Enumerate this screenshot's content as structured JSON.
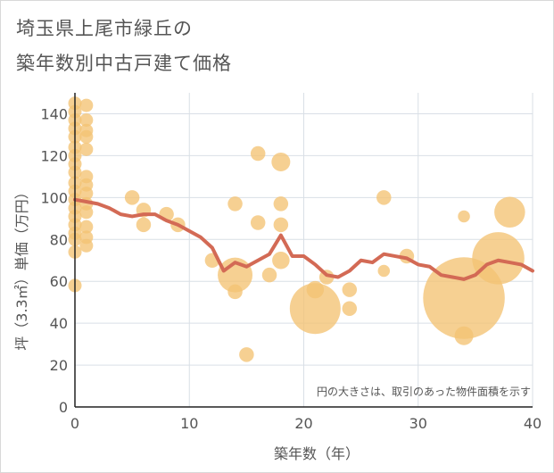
{
  "chart_data": {
    "type": "scatter",
    "title_line1": "埼玉県上尾市緑丘の",
    "title_line2": "築年数別中古戸建て価格",
    "xlabel": "築年数（年）",
    "ylabel": "坪（3.3㎡）単価（万円）",
    "note": "円の大きさは、取引のあった物件面積を示す",
    "xlim": [
      0,
      40
    ],
    "ylim": [
      0,
      150
    ],
    "xticks": [
      0,
      10,
      20,
      30,
      40
    ],
    "yticks": [
      0,
      20,
      40,
      60,
      80,
      100,
      120,
      140
    ],
    "colors": {
      "bubble": "#f3c373",
      "trend": "#d36a55",
      "grid": "#d9dfe6"
    },
    "bubbles": [
      {
        "x": 0,
        "y": 145,
        "s": 1
      },
      {
        "x": 0,
        "y": 141,
        "s": 1
      },
      {
        "x": 0,
        "y": 137,
        "s": 1
      },
      {
        "x": 0,
        "y": 133,
        "s": 1
      },
      {
        "x": 0,
        "y": 129,
        "s": 1
      },
      {
        "x": 0,
        "y": 124,
        "s": 1
      },
      {
        "x": 0,
        "y": 120,
        "s": 1
      },
      {
        "x": 0,
        "y": 116,
        "s": 1
      },
      {
        "x": 0,
        "y": 112,
        "s": 1
      },
      {
        "x": 0,
        "y": 107,
        "s": 1
      },
      {
        "x": 0,
        "y": 103,
        "s": 1
      },
      {
        "x": 0,
        "y": 99,
        "s": 1
      },
      {
        "x": 0,
        "y": 95,
        "s": 1
      },
      {
        "x": 0,
        "y": 91,
        "s": 1
      },
      {
        "x": 0,
        "y": 87,
        "s": 1
      },
      {
        "x": 0,
        "y": 83,
        "s": 1
      },
      {
        "x": 0,
        "y": 80,
        "s": 1
      },
      {
        "x": 0,
        "y": 74,
        "s": 1
      },
      {
        "x": 0,
        "y": 58,
        "s": 1
      },
      {
        "x": 1,
        "y": 144,
        "s": 1
      },
      {
        "x": 1,
        "y": 137,
        "s": 1
      },
      {
        "x": 1,
        "y": 132,
        "s": 1
      },
      {
        "x": 1,
        "y": 129,
        "s": 1
      },
      {
        "x": 1,
        "y": 123,
        "s": 1
      },
      {
        "x": 1,
        "y": 110,
        "s": 1
      },
      {
        "x": 1,
        "y": 106,
        "s": 1
      },
      {
        "x": 1,
        "y": 102,
        "s": 1
      },
      {
        "x": 1,
        "y": 97,
        "s": 1
      },
      {
        "x": 1,
        "y": 93,
        "s": 1
      },
      {
        "x": 1,
        "y": 86,
        "s": 1
      },
      {
        "x": 1,
        "y": 81,
        "s": 1
      },
      {
        "x": 1,
        "y": 77,
        "s": 1
      },
      {
        "x": 5,
        "y": 100,
        "s": 1.1
      },
      {
        "x": 6,
        "y": 94,
        "s": 1.1
      },
      {
        "x": 6,
        "y": 87,
        "s": 1.1
      },
      {
        "x": 8,
        "y": 92,
        "s": 1.1
      },
      {
        "x": 9,
        "y": 87,
        "s": 1.1
      },
      {
        "x": 12,
        "y": 70,
        "s": 1.1
      },
      {
        "x": 14,
        "y": 97,
        "s": 1.1
      },
      {
        "x": 14,
        "y": 63,
        "s": 2.6
      },
      {
        "x": 14,
        "y": 55,
        "s": 1.1
      },
      {
        "x": 15,
        "y": 25,
        "s": 1.1
      },
      {
        "x": 16,
        "y": 121,
        "s": 1.1
      },
      {
        "x": 16,
        "y": 88,
        "s": 1.1
      },
      {
        "x": 17,
        "y": 63,
        "s": 1.1
      },
      {
        "x": 18,
        "y": 117,
        "s": 1.4
      },
      {
        "x": 18,
        "y": 97,
        "s": 1.1
      },
      {
        "x": 18,
        "y": 87,
        "s": 1.1
      },
      {
        "x": 18,
        "y": 70,
        "s": 1.3
      },
      {
        "x": 21,
        "y": 56,
        "s": 1.3
      },
      {
        "x": 21,
        "y": 47,
        "s": 3.8
      },
      {
        "x": 22,
        "y": 62,
        "s": 1.1
      },
      {
        "x": 24,
        "y": 56,
        "s": 1.1
      },
      {
        "x": 24,
        "y": 47,
        "s": 1.1
      },
      {
        "x": 27,
        "y": 100,
        "s": 1.1
      },
      {
        "x": 27,
        "y": 65,
        "s": 0.9
      },
      {
        "x": 29,
        "y": 72,
        "s": 1.1
      },
      {
        "x": 34,
        "y": 52,
        "s": 6.1
      },
      {
        "x": 34,
        "y": 91,
        "s": 0.9
      },
      {
        "x": 34,
        "y": 34,
        "s": 1.4
      },
      {
        "x": 37,
        "y": 71,
        "s": 3.9
      },
      {
        "x": 38,
        "y": 93,
        "s": 2.3
      }
    ],
    "trend": {
      "x": [
        0,
        1,
        2,
        3,
        4,
        5,
        6,
        7,
        8,
        9,
        10,
        11,
        12,
        13,
        14,
        15,
        16,
        17,
        18,
        19,
        20,
        21,
        22,
        23,
        24,
        25,
        26,
        27,
        28,
        29,
        30,
        31,
        32,
        33,
        34,
        35,
        36,
        37,
        38,
        39,
        40
      ],
      "y": [
        99,
        98,
        97,
        95,
        92,
        91,
        92,
        92,
        89,
        87,
        84,
        81,
        76,
        65,
        69,
        67,
        70,
        73,
        82,
        72,
        72,
        68,
        63,
        62,
        65,
        70,
        69,
        73,
        72,
        71,
        68,
        67,
        63,
        62,
        61,
        63,
        68,
        70,
        69,
        68,
        65
      ]
    }
  }
}
